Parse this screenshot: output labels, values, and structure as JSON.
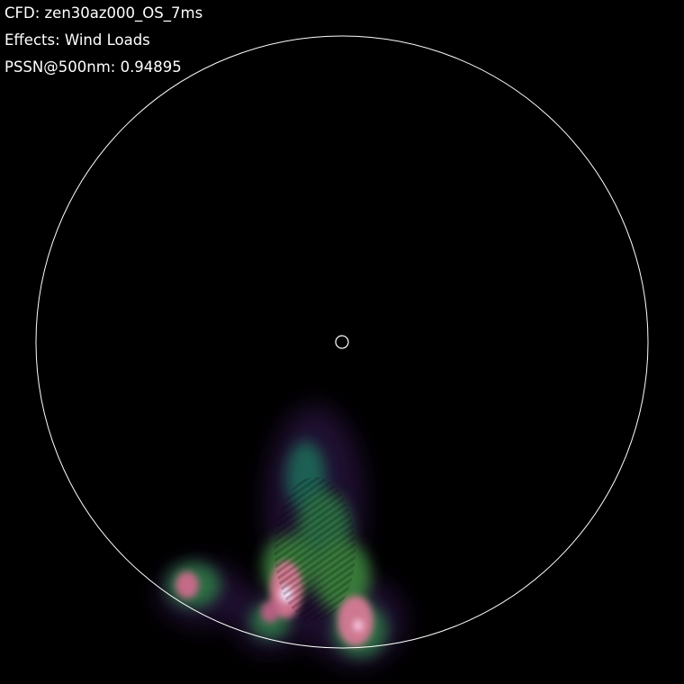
{
  "labels": {
    "cfd": "CFD: zen30az000_OS_7ms",
    "effects": "Effects: Wind Loads",
    "pssn": "PSSN@500nm: 0.94895"
  },
  "colors": {
    "background": "#000000",
    "text": "#ffffff",
    "circle": "#ffffff",
    "blob_low": "#1e6e5a",
    "blob_mid": "#3c8c3c",
    "blob_high": "#e07a9a",
    "blob_peak": "#f4e8ff"
  }
}
